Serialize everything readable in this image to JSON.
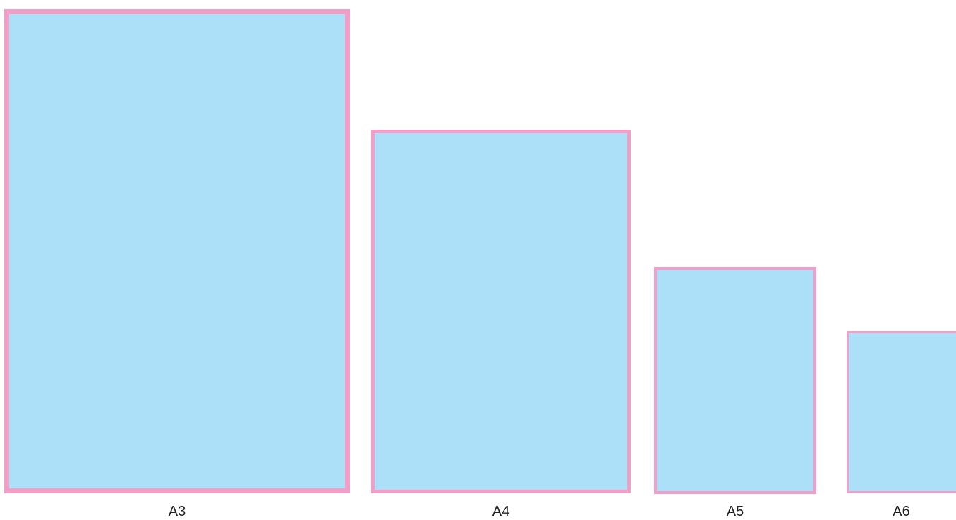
{
  "colors": {
    "sheet_fill": "#abe0f8",
    "sheet_border": "#f29ec6",
    "background": "#ffffff"
  },
  "sheets": [
    {
      "id": "a3",
      "label": "A3"
    },
    {
      "id": "a4",
      "label": "A4"
    },
    {
      "id": "a5",
      "label": "A5"
    },
    {
      "id": "a6",
      "label": "A6"
    }
  ]
}
